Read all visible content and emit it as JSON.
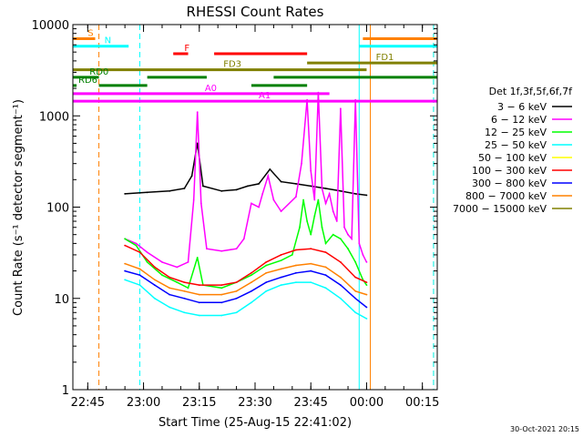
{
  "chart_data": {
    "type": "line",
    "title": "RHESSI Count Rates",
    "xlabel": "Start Time (25-Aug-15 22:41:02)",
    "ylabel": "Count Rate (s⁻¹ detector segment⁻¹)",
    "x_unit": "minutes after 22:41:02",
    "xlim": [
      0,
      98
    ],
    "ylim": [
      1,
      10000
    ],
    "y_scale": "log",
    "x_ticks": [
      {
        "label": "22:45",
        "x": 4
      },
      {
        "label": "23:00",
        "x": 19
      },
      {
        "label": "23:15",
        "x": 34
      },
      {
        "label": "23:30",
        "x": 49
      },
      {
        "label": "23:45",
        "x": 64
      },
      {
        "label": "00:00",
        "x": 79
      },
      {
        "label": "00:15",
        "x": 94
      }
    ],
    "y_ticks": [
      1,
      10,
      100,
      1000,
      10000
    ],
    "legend": {
      "title": "Det 1f,3f,5f,6f,7f",
      "placement": "right",
      "entries": [
        {
          "label": "3 − 6 keV",
          "color": "#000000"
        },
        {
          "label": "6 − 12 keV",
          "color": "#ff00ff"
        },
        {
          "label": "12 − 25 keV",
          "color": "#00ff00"
        },
        {
          "label": "25 − 50 keV",
          "color": "#00ffff"
        },
        {
          "label": "50 − 100 keV",
          "color": "#ffff00"
        },
        {
          "label": "100 − 300 keV",
          "color": "#ff0000"
        },
        {
          "label": "300 − 800 keV",
          "color": "#0000ff"
        },
        {
          "label": "800 − 7000 keV",
          "color": "#ff8000"
        },
        {
          "label": "7000 − 15000 keV",
          "color": "#808000"
        }
      ]
    },
    "series": [
      {
        "name": "3 − 6 keV",
        "color": "#000000",
        "x": [
          14,
          20,
          26,
          30,
          32,
          33.5,
          35,
          40,
          44,
          47,
          50,
          53,
          56,
          60,
          64,
          68,
          72,
          76,
          79
        ],
        "y": [
          140,
          145,
          150,
          160,
          220,
          500,
          170,
          150,
          155,
          170,
          180,
          260,
          190,
          180,
          170,
          160,
          150,
          140,
          135
        ]
      },
      {
        "name": "6 − 12 keV",
        "color": "#ff00ff",
        "x": [
          14,
          17,
          20,
          24,
          28,
          31,
          32.5,
          33.5,
          34.5,
          36,
          40,
          44,
          46,
          48,
          50,
          51,
          52.5,
          54,
          56,
          60,
          61.5,
          63,
          64,
          65,
          66,
          67,
          68,
          69,
          70,
          71,
          72,
          73,
          74,
          75,
          76,
          77,
          78,
          79
        ],
        "y": [
          45,
          40,
          32,
          25,
          22,
          25,
          120,
          1100,
          110,
          35,
          33,
          35,
          45,
          110,
          100,
          140,
          220,
          120,
          90,
          130,
          300,
          1500,
          250,
          120,
          1800,
          160,
          110,
          140,
          90,
          70,
          1200,
          60,
          50,
          45,
          1500,
          40,
          30,
          25
        ]
      },
      {
        "name": "12 − 25 keV",
        "color": "#00ff00",
        "x": [
          14,
          17,
          20,
          24,
          28,
          31,
          33.5,
          35,
          40,
          44,
          48,
          52,
          56,
          59,
          61,
          62,
          63,
          64,
          65,
          66,
          67,
          68,
          70,
          72,
          74,
          76,
          78,
          79
        ],
        "y": [
          45,
          38,
          25,
          18,
          15,
          13,
          28,
          14,
          13,
          15,
          18,
          23,
          26,
          30,
          60,
          120,
          70,
          50,
          80,
          120,
          60,
          40,
          50,
          45,
          35,
          25,
          16,
          14
        ]
      },
      {
        "name": "25 − 50 keV",
        "color": "#00ffff",
        "x": [
          14,
          18,
          22,
          26,
          30,
          34,
          40,
          44,
          48,
          52,
          56,
          60,
          64,
          68,
          72,
          76,
          79
        ],
        "y": [
          16,
          14,
          10,
          8,
          7,
          6.5,
          6.5,
          7,
          9,
          12,
          14,
          15,
          15,
          13,
          10,
          7,
          6
        ]
      },
      {
        "name": "100 − 300 keV",
        "color": "#ff0000",
        "x": [
          14,
          18,
          22,
          26,
          30,
          34,
          40,
          44,
          48,
          52,
          56,
          60,
          64,
          68,
          72,
          76,
          79
        ],
        "y": [
          38,
          32,
          22,
          17,
          15,
          14,
          14,
          15,
          19,
          25,
          30,
          34,
          35,
          32,
          25,
          17,
          15
        ]
      },
      {
        "name": "300 − 800 keV",
        "color": "#0000ff",
        "x": [
          14,
          18,
          22,
          26,
          30,
          34,
          40,
          44,
          48,
          52,
          56,
          60,
          64,
          68,
          72,
          76,
          79
        ],
        "y": [
          20,
          18,
          14,
          11,
          10,
          9,
          9,
          10,
          12,
          15,
          17,
          19,
          20,
          18,
          14,
          10,
          8
        ]
      },
      {
        "name": "800 − 7000 keV",
        "color": "#ff8000",
        "x": [
          14,
          18,
          22,
          26,
          30,
          34,
          40,
          44,
          48,
          52,
          56,
          60,
          64,
          68,
          72,
          76,
          79
        ],
        "y": [
          24,
          21,
          16,
          13,
          12,
          11,
          11,
          12,
          15,
          19,
          21,
          23,
          24,
          22,
          17,
          12,
          11
        ]
      }
    ],
    "flag_bars": [
      {
        "label": "S",
        "color": "#ff8000",
        "y": 7000,
        "segments": [
          [
            0,
            6
          ],
          [
            78,
            98
          ]
        ]
      },
      {
        "label": "N",
        "color": "#00ffff",
        "y": 5800,
        "segments": [
          [
            0,
            15
          ],
          [
            77,
            98
          ]
        ]
      },
      {
        "label": "F",
        "color": "#ff0000",
        "y": 4800,
        "segments": [
          [
            27,
            31
          ],
          [
            38,
            63
          ]
        ]
      },
      {
        "label": "FD1",
        "color": "#808000",
        "y": 3800,
        "segments": [
          [
            63,
            98
          ]
        ]
      },
      {
        "label": "FD3",
        "color": "#808000",
        "y": 3200,
        "segments": [
          [
            0,
            79
          ]
        ]
      },
      {
        "label": "RD0",
        "color": "#008000",
        "y": 2650,
        "segments": [
          [
            0,
            7
          ],
          [
            20,
            36
          ],
          [
            54,
            98
          ]
        ]
      },
      {
        "label": "RD6",
        "color": "#008000",
        "y": 2150,
        "segments": [
          [
            0,
            1
          ],
          [
            7,
            20
          ],
          [
            48,
            63
          ]
        ]
      },
      {
        "label": "A0",
        "color": "#ff00ff",
        "y": 1750,
        "segments": [
          [
            0,
            69
          ]
        ]
      },
      {
        "label": "A1",
        "color": "#ff00ff",
        "y": 1450,
        "segments": [
          [
            0,
            98
          ]
        ]
      }
    ],
    "vertical_lines": [
      {
        "x": 7,
        "color": "#ff8000",
        "style": "dashed"
      },
      {
        "x": 18,
        "color": "#00ffff",
        "style": "dashed"
      },
      {
        "x": 77,
        "color": "#00ffff",
        "style": "solid"
      },
      {
        "x": 80,
        "color": "#ff8000",
        "style": "solid"
      },
      {
        "x": 97,
        "color": "#ff8000",
        "style": "dashed"
      },
      {
        "x": 97,
        "color": "#00ffff",
        "style": "dashed"
      }
    ],
    "timestamp": "30-Oct-2021 20:15"
  }
}
